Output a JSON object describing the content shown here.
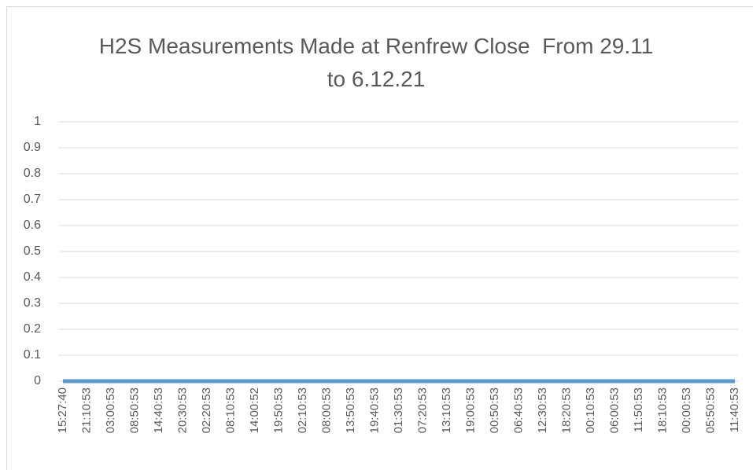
{
  "chart_data": {
    "type": "line",
    "title": "H2S Measurements Made at Renfrew Close  From 29.11 to 6.12.21",
    "categories": [
      "15:27:40",
      "21:10:53",
      "03:00:53",
      "08:50:53",
      "14:40:53",
      "20:30:53",
      "02:20:53",
      "08:10:53",
      "14:00:52",
      "19:50:53",
      "02:10:53",
      "08:00:53",
      "13:50:53",
      "19:40:53",
      "01:30:53",
      "07:20:53",
      "13:10:53",
      "19:00:53",
      "00:50:53",
      "06:40:53",
      "12:30:53",
      "18:20:53",
      "00:10:53",
      "06:00:53",
      "11:50:53",
      "18:10:53",
      "00:00:53",
      "05:50:53",
      "11:40:53"
    ],
    "series": [
      {
        "color": "#5b9bd5",
        "values": [
          0,
          0,
          0,
          0,
          0,
          0,
          0,
          0,
          0,
          0,
          0,
          0,
          0,
          0,
          0,
          0,
          0,
          0,
          0,
          0,
          0,
          0,
          0,
          0,
          0,
          0,
          0,
          0,
          0
        ]
      }
    ],
    "ylim": [
      0,
      1
    ],
    "yticks": [
      0,
      0.1,
      0.2,
      0.3,
      0.4,
      0.5,
      0.6,
      0.7,
      0.8,
      0.9,
      1
    ],
    "grid": true
  }
}
